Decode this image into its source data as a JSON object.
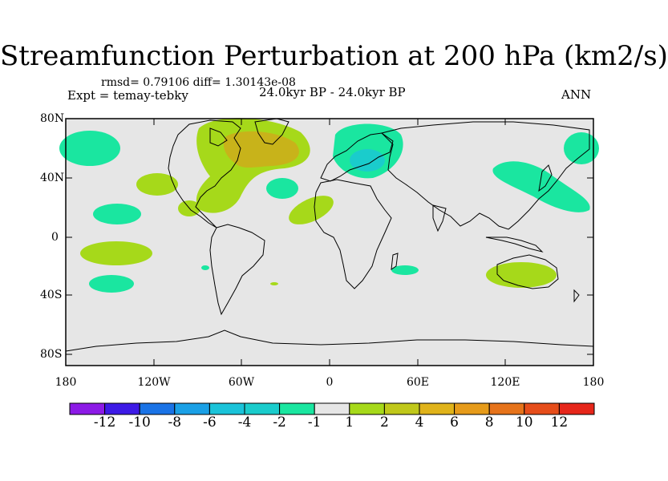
{
  "map": {
    "title": "Streamfunction Perturbation at 200 hPa (km2/s)",
    "stats": "rmsd= 0.79106 diff= 1.30143e-08",
    "experiment": "Expt = temay-tebky",
    "period": "24.0kyr BP - 24.0kyr BP",
    "season": "ANN",
    "y_ticks": [
      "80N",
      "40N",
      "0",
      "40S",
      "80S"
    ],
    "x_ticks": [
      "180",
      "120W",
      "60W",
      "0",
      "60E",
      "120E",
      "180"
    ],
    "background_color": "#e6e6e6",
    "contour_regions": [
      {
        "name": "north-pacific",
        "level": "-2",
        "color": "#1ae6a0"
      },
      {
        "name": "north-america-west",
        "level": "2",
        "color": "#a6d91a"
      },
      {
        "name": "north-atlantic-core",
        "level": "4",
        "color": "#c8b31a"
      },
      {
        "name": "europe",
        "level": "-2",
        "color": "#1ae6a0"
      },
      {
        "name": "europe-core",
        "level": "-4",
        "color": "#1acccc"
      },
      {
        "name": "east-asia",
        "level": "-2",
        "color": "#1ae6a0"
      },
      {
        "name": "australia",
        "level": "2",
        "color": "#a6d91a"
      }
    ]
  },
  "colorbar": {
    "colors": [
      "#8c1ae6",
      "#3d1ae6",
      "#1a73e6",
      "#1aa0e6",
      "#1ac3d9",
      "#1acccc",
      "#1ae6a0",
      "#e6e6e6",
      "#a6d91a",
      "#c0c81a",
      "#e0b31a",
      "#e69b1a",
      "#e6731a",
      "#e64d1a",
      "#e6261a"
    ],
    "labels": [
      "-12",
      "-10",
      "-8",
      "-6",
      "-4",
      "-2",
      "-1",
      "1",
      "2",
      "4",
      "6",
      "8",
      "10",
      "12"
    ]
  }
}
